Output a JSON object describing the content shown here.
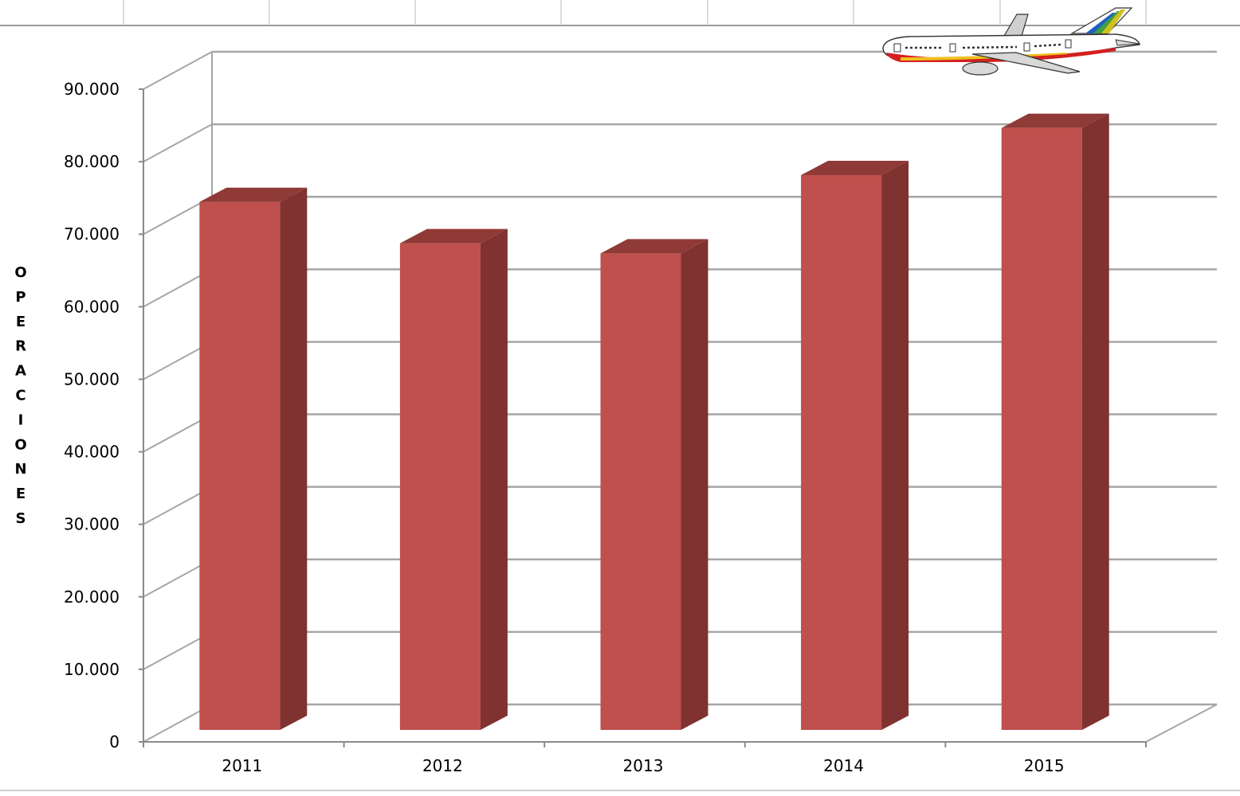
{
  "chart_data": {
    "type": "bar",
    "categories": [
      "2011",
      "2012",
      "2013",
      "2014",
      "2015"
    ],
    "values": [
      72800,
      67100,
      65700,
      76500,
      83000
    ],
    "title": "",
    "xlabel": "",
    "ylabel": "OPERACIONES",
    "ylim": [
      0,
      90000
    ],
    "yticks": [
      "0",
      "10.000",
      "20.000",
      "30.000",
      "40.000",
      "50.000",
      "60.000",
      "70.000",
      "80.000",
      "90.000"
    ],
    "grid": true,
    "style": "3d-column",
    "colors": {
      "bar_front": "#c0504d",
      "bar_side": "#7f3230",
      "bar_top": "#8f3a37",
      "grid": "#a6a6a6"
    },
    "decoration_icon": "airplane-icon"
  }
}
